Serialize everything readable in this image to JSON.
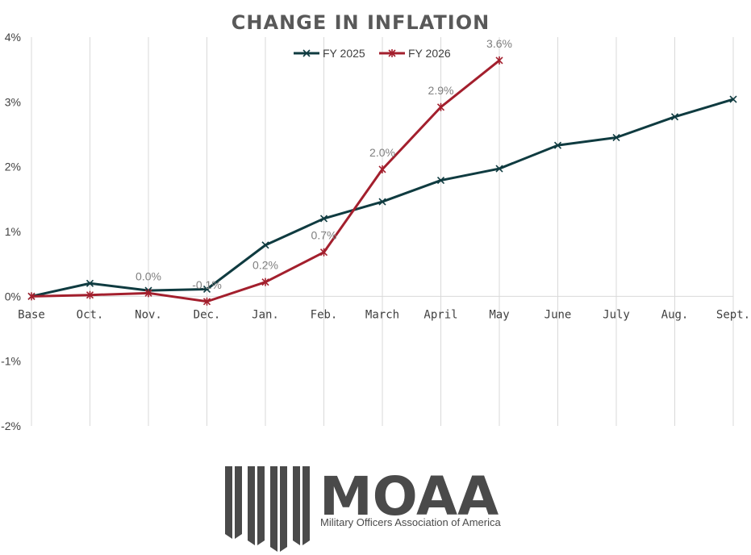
{
  "chart_data": {
    "type": "line",
    "title": "CHANGE IN INFLATION",
    "categories": [
      "Base",
      "Oct.",
      "Nov.",
      "Dec.",
      "Jan.",
      "Feb.",
      "March",
      "April",
      "May",
      "June",
      "July",
      "Aug.",
      "Sept."
    ],
    "ylim": [
      -2,
      4
    ],
    "yticks": [
      -2,
      -1,
      0,
      1,
      2,
      3,
      4
    ],
    "ytick_labels": [
      "-2%",
      "-1%",
      "0%",
      "1%",
      "2%",
      "3%",
      "4%"
    ],
    "grid": "vertical",
    "legend": "top-center",
    "series": [
      {
        "name": "FY 2025",
        "color": "#0f3b40",
        "marker": "x",
        "values": [
          0.0,
          0.2,
          0.09,
          0.11,
          0.79,
          1.2,
          1.46,
          1.79,
          1.97,
          2.33,
          2.45,
          2.77,
          3.04
        ]
      },
      {
        "name": "FY 2026",
        "color": "#a31f2d",
        "marker": "star",
        "values": [
          0.0,
          0.02,
          0.05,
          -0.08,
          0.22,
          0.68,
          1.96,
          2.92,
          3.64,
          null,
          null,
          null,
          null
        ],
        "data_labels": [
          null,
          null,
          "0.0%",
          "-0.1%",
          "0.2%",
          "0.7%",
          "2.0%",
          "2.9%",
          "3.6%",
          null,
          null,
          null,
          null
        ]
      }
    ]
  },
  "brand": {
    "name": "MOAA",
    "registered": "®",
    "tagline": "Military Officers Association of America",
    "color": "#4a4a4a"
  }
}
